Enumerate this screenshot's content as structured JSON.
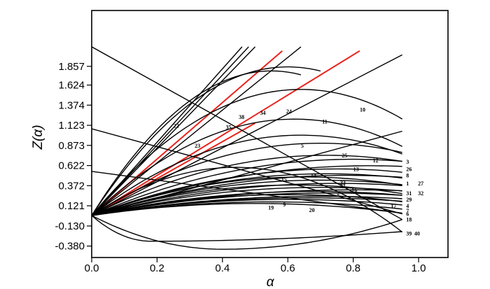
{
  "chart_data": {
    "type": "line",
    "xlabel": "α",
    "ylabel": "Z(α)",
    "xlim": [
      0.0,
      1.15
    ],
    "ylim": [
      -0.43,
      2.1
    ],
    "x_ticks": [
      "0.0",
      "0.2",
      "0.4",
      "0.6",
      "0.8",
      "1.0"
    ],
    "y_ticks": [
      "-0.380",
      "-0.130",
      "0.121",
      "0.372",
      "0.622",
      "0.873",
      "1.123",
      "1.374",
      "1.624",
      "1.857"
    ],
    "grid": false,
    "colors": {
      "black_curves": "#000000",
      "red_curves": "#e8231b"
    },
    "curve_labels": [
      {
        "text": "22",
        "x": 0.25,
        "y": 1.12
      },
      {
        "text": "23",
        "x": 0.315,
        "y": 0.87
      },
      {
        "text": "35",
        "x": 0.41,
        "y": 1.1
      },
      {
        "text": "38",
        "x": 0.45,
        "y": 1.23
      },
      {
        "text": "34",
        "x": 0.515,
        "y": 1.28
      },
      {
        "text": "24",
        "x": 0.595,
        "y": 1.3
      },
      {
        "text": "10",
        "x": 0.82,
        "y": 1.32
      },
      {
        "text": "11",
        "x": 0.705,
        "y": 1.17
      },
      {
        "text": "5",
        "x": 0.64,
        "y": 0.87
      },
      {
        "text": "25",
        "x": 0.765,
        "y": 0.75
      },
      {
        "text": "12",
        "x": 0.86,
        "y": 0.69
      },
      {
        "text": "13",
        "x": 0.8,
        "y": 0.58
      },
      {
        "text": "14",
        "x": 0.67,
        "y": 0.5
      },
      {
        "text": "15",
        "x": 0.58,
        "y": 0.45
      },
      {
        "text": "33",
        "x": 0.76,
        "y": 0.41
      },
      {
        "text": "21",
        "x": 0.76,
        "y": 0.37
      },
      {
        "text": "16",
        "x": 0.795,
        "y": 0.32
      },
      {
        "text": "2",
        "x": 0.75,
        "y": 0.28
      },
      {
        "text": "9",
        "x": 0.585,
        "y": 0.14
      },
      {
        "text": "19",
        "x": 0.54,
        "y": 0.1
      },
      {
        "text": "20",
        "x": 0.665,
        "y": 0.07
      },
      {
        "text": "17",
        "x": 0.915,
        "y": 0.12
      },
      {
        "text": "3",
        "x": 0.962,
        "y": 0.67
      },
      {
        "text": "26",
        "x": 0.962,
        "y": 0.58
      },
      {
        "text": "8",
        "x": 0.962,
        "y": 0.5
      },
      {
        "text": "1",
        "x": 0.962,
        "y": 0.4
      },
      {
        "text": "27",
        "x": 0.998,
        "y": 0.4
      },
      {
        "text": "31",
        "x": 0.962,
        "y": 0.28
      },
      {
        "text": "32",
        "x": 0.998,
        "y": 0.28
      },
      {
        "text": "29",
        "x": 0.962,
        "y": 0.2
      },
      {
        "text": "4",
        "x": 0.962,
        "y": 0.12
      },
      {
        "text": "7",
        "x": 0.962,
        "y": 0.06
      },
      {
        "text": "6",
        "x": 0.962,
        "y": 0.02
      },
      {
        "text": "18",
        "x": 0.962,
        "y": -0.05
      },
      {
        "text": "39",
        "x": 0.962,
        "y": -0.22
      },
      {
        "text": "40",
        "x": 0.987,
        "y": -0.22
      }
    ],
    "series": [
      {
        "style": "line",
        "color": "red",
        "x": [
          0.0,
          0.583
        ],
        "y": [
          0.0,
          2.05
        ]
      },
      {
        "style": "line",
        "color": "red",
        "x": [
          0.0,
          0.82
        ],
        "y": [
          0.0,
          2.05
        ]
      },
      {
        "style": "line",
        "color": "red",
        "x": [
          0.0,
          0.5
        ],
        "y": [
          0.0,
          1.15
        ]
      },
      {
        "style": "line",
        "x": [
          0.0,
          0.46
        ],
        "y": [
          0.0,
          2.1
        ]
      },
      {
        "style": "line",
        "x": [
          0.0,
          0.48
        ],
        "y": [
          0.0,
          2.1
        ]
      },
      {
        "style": "line",
        "x": [
          0.0,
          0.5
        ],
        "y": [
          0.0,
          2.1
        ]
      },
      {
        "style": "line",
        "x": [
          0.0,
          0.64
        ],
        "y": [
          0.0,
          2.1
        ]
      },
      {
        "style": "line",
        "x": [
          0.0,
          0.95
        ],
        "y": [
          0.0,
          2.0
        ]
      },
      {
        "style": "line",
        "x": [
          0.0,
          0.95
        ],
        "y": [
          0.0,
          1.05
        ]
      },
      {
        "style": "line",
        "x": [
          0.0,
          0.95
        ],
        "y": [
          2.1,
          -0.05
        ]
      },
      {
        "style": "line",
        "x": [
          0.0,
          0.95
        ],
        "y": [
          1.08,
          0.02
        ]
      },
      {
        "style": "line",
        "x": [
          0.0,
          0.95
        ],
        "y": [
          0.55,
          0.03
        ]
      },
      {
        "style": "parabola",
        "x_end": 0.95,
        "peak": 0.6,
        "peak_x": 0.44
      },
      {
        "style": "parabola",
        "x_end": 0.64,
        "peak": 1.8,
        "peak_x": 0.55
      },
      {
        "style": "parabola",
        "x_end": 0.7,
        "peak": 1.85,
        "peak_x": 0.6
      },
      {
        "style": "parabola",
        "x_end": 0.95,
        "peak": 1.57,
        "peak_x": 0.64
      },
      {
        "style": "parabola",
        "x_end": 0.95,
        "peak": 1.2,
        "peak_x": 0.62
      },
      {
        "style": "parabola",
        "x_end": 0.95,
        "peak": 1.0,
        "peak_x": 0.64
      },
      {
        "style": "parabola",
        "x_end": 0.95,
        "peak": 0.9,
        "peak_x": 0.7
      },
      {
        "style": "parabola",
        "x_end": 0.95,
        "peak": 0.75,
        "peak_x": 0.72
      },
      {
        "style": "parabola",
        "x_end": 0.95,
        "peak": 0.7,
        "peak_x": 0.8
      },
      {
        "style": "parabola",
        "x_end": 0.95,
        "peak": 0.62,
        "peak_x": 0.85
      },
      {
        "style": "parabola",
        "x_end": 0.95,
        "peak": 0.58,
        "peak_x": 0.75
      },
      {
        "style": "parabola",
        "x_end": 0.95,
        "peak": 0.52,
        "peak_x": 0.72
      },
      {
        "style": "parabola",
        "x_end": 0.95,
        "peak": 0.5,
        "peak_x": 0.78
      },
      {
        "style": "parabola",
        "x_end": 0.95,
        "peak": 0.48,
        "peak_x": 0.65
      },
      {
        "style": "parabola",
        "x_end": 0.95,
        "peak": 0.44,
        "peak_x": 0.7
      },
      {
        "style": "parabola",
        "x_end": 0.95,
        "peak": 0.4,
        "peak_x": 0.75
      },
      {
        "style": "parabola",
        "x_end": 0.95,
        "peak": 0.38,
        "peak_x": 0.62
      },
      {
        "style": "parabola",
        "x_end": 0.95,
        "peak": 0.35,
        "peak_x": 0.7
      },
      {
        "style": "parabola",
        "x_end": 0.95,
        "peak": 0.32,
        "peak_x": 0.8
      },
      {
        "style": "parabola",
        "x_end": 0.95,
        "peak": 0.3,
        "peak_x": 0.68
      },
      {
        "style": "parabola",
        "x_end": 0.95,
        "peak": 0.28,
        "peak_x": 0.72
      },
      {
        "style": "parabola",
        "x_end": 0.95,
        "peak": 0.26,
        "peak_x": 0.6
      },
      {
        "style": "parabola",
        "x_end": 0.95,
        "peak": 0.24,
        "peak_x": 0.7
      },
      {
        "style": "parabola",
        "x_end": 0.95,
        "peak": 0.22,
        "peak_x": 0.66
      },
      {
        "style": "parabola",
        "x_end": 0.95,
        "peak": 0.2,
        "peak_x": 0.6
      },
      {
        "style": "parabola",
        "x_end": 0.95,
        "peak": 0.17,
        "peak_x": 0.55
      },
      {
        "style": "parabola",
        "x_end": 0.95,
        "peak": 0.15,
        "peak_x": 0.5
      },
      {
        "style": "parabola",
        "x_end": 0.95,
        "peak": -0.32,
        "peak_x": 0.18,
        "end": -0.2
      },
      {
        "style": "parabola",
        "x_end": 0.95,
        "peak": -0.42,
        "peak_x": 0.4,
        "end": -0.05
      }
    ]
  }
}
